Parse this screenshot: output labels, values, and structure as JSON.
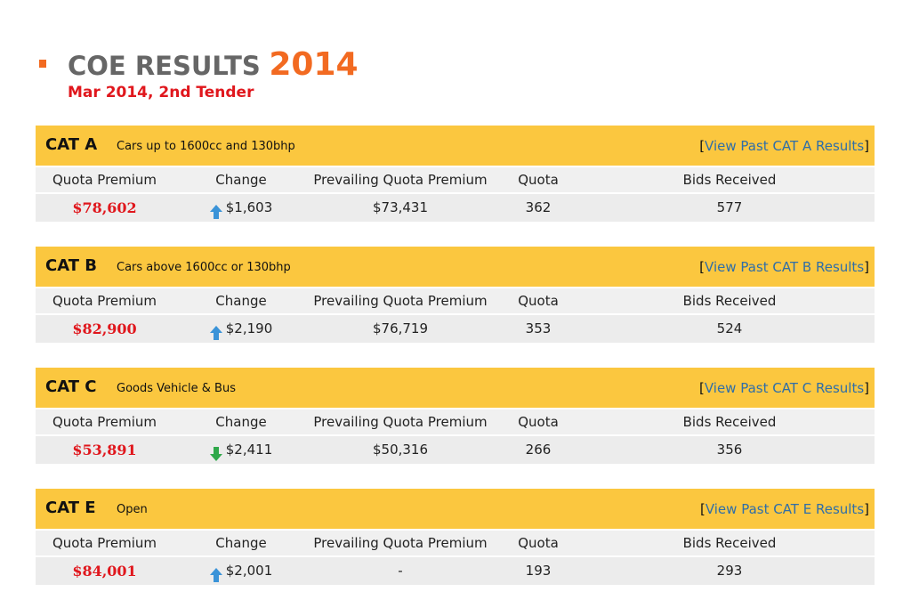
{
  "header": {
    "title": "COE RESULTS",
    "year": "2014",
    "subtitle": "Mar 2014, 2nd Tender",
    "accent_color": "#f26a21",
    "subtitle_color": "#e0171d"
  },
  "columns": {
    "quota_premium": "Quota Premium",
    "change": "Change",
    "prevailing": "Prevailing Quota Premium",
    "quota": "Quota",
    "bids": "Bids Received"
  },
  "categories": [
    {
      "code": "CAT A",
      "description": "Cars up to 1600cc and 130bhp",
      "link_prefix": "[",
      "link_text": "View Past CAT A Results",
      "link_suffix": "]",
      "quota_premium": "$78,602",
      "change_direction": "up",
      "change": "$1,603",
      "prevailing": "$73,431",
      "quota": "362",
      "bids": "577"
    },
    {
      "code": "CAT B",
      "description": "Cars above 1600cc or 130bhp",
      "link_prefix": "[",
      "link_text": "View Past CAT B Results",
      "link_suffix": "]",
      "quota_premium": "$82,900",
      "change_direction": "up",
      "change": "$2,190",
      "prevailing": "$76,719",
      "quota": "353",
      "bids": "524"
    },
    {
      "code": "CAT C",
      "description": "Goods Vehicle & Bus",
      "link_prefix": "[",
      "link_text": "View Past CAT C Results",
      "link_suffix": "]",
      "quota_premium": "$53,891",
      "change_direction": "down",
      "change": "$2,411",
      "prevailing": "$50,316",
      "quota": "266",
      "bids": "356"
    },
    {
      "code": "CAT E",
      "description": "Open",
      "link_prefix": "[",
      "link_text": "View Past CAT E Results",
      "link_suffix": "]",
      "quota_premium": "$84,001",
      "change_direction": "up",
      "change": "$2,001",
      "prevailing": "-",
      "quota": "193",
      "bids": "293"
    }
  ],
  "icons": {
    "up_arrow_color": "#3a93d8",
    "down_arrow_color": "#2fa84a"
  }
}
